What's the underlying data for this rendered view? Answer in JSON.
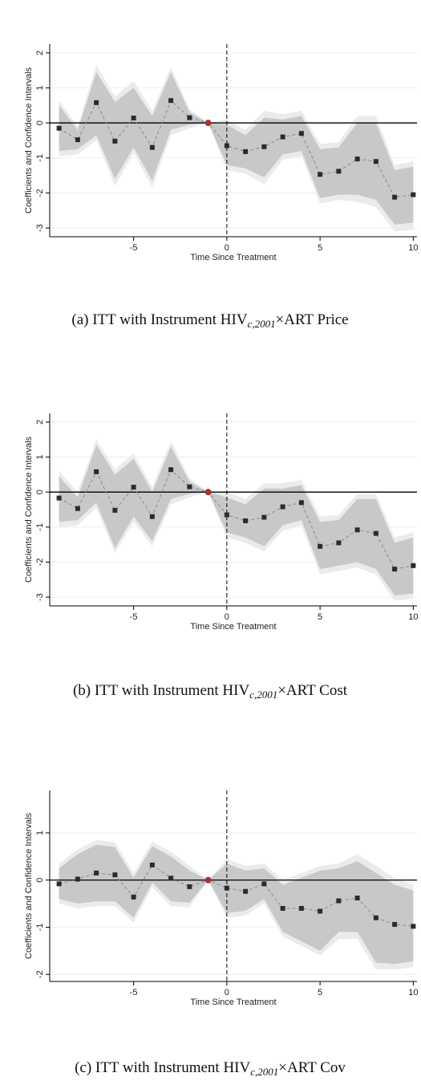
{
  "chart_data": [
    {
      "type": "eventstudy",
      "ylabel": "Coefficients and Confidence Intervals",
      "xlabel": "Time Since Treatment",
      "caption": {
        "prefix": "(a) ITT with Instrument HIV",
        "subscript": "c,2001",
        "suffix": "×ART Price"
      },
      "x": [
        -9,
        -8,
        -7,
        -6,
        -5,
        -4,
        -3,
        -2,
        -1,
        0,
        1,
        2,
        3,
        4,
        5,
        6,
        7,
        8,
        9,
        10
      ],
      "values": [
        -0.15,
        -0.48,
        0.58,
        -0.52,
        0.14,
        -0.7,
        0.64,
        0.15,
        0,
        -0.65,
        -0.82,
        -0.68,
        -0.4,
        -0.3,
        -1.47,
        -1.38,
        -1.03,
        -1.1,
        -2.12,
        -2.05
      ],
      "ci_lower": [
        -0.8,
        -0.75,
        -0.35,
        -1.6,
        -0.7,
        -1.65,
        -0.2,
        -0.05,
        0,
        -1.2,
        -1.3,
        -1.55,
        -0.9,
        -0.8,
        -2.15,
        -2.05,
        -2.05,
        -2.2,
        -2.9,
        -2.85
      ],
      "ci_upper": [
        0.5,
        -0.2,
        1.45,
        0.6,
        1.0,
        0.2,
        1.45,
        0.3,
        0,
        -0.05,
        -0.35,
        0.15,
        0.1,
        0.2,
        -0.75,
        -0.7,
        0,
        0,
        -1.35,
        -1.25
      ],
      "ci_outer_lower": [
        -0.95,
        -0.9,
        -0.5,
        -1.8,
        -0.85,
        -1.85,
        -0.35,
        -0.15,
        0,
        -1.35,
        -1.45,
        -1.75,
        -1.05,
        -0.95,
        -2.3,
        -2.2,
        -2.25,
        -2.4,
        -3.1,
        -3.05
      ],
      "ci_outer_upper": [
        0.65,
        -0.1,
        1.65,
        0.75,
        1.2,
        0.35,
        1.6,
        0.4,
        0,
        0.1,
        -0.2,
        0.35,
        0.25,
        0.35,
        -0.6,
        -0.55,
        0.2,
        0.2,
        -1.2,
        -1.1
      ],
      "xlim": [
        -9.5,
        10.2
      ],
      "ylim": [
        -3.25,
        2.25
      ],
      "xticks": [
        -5,
        0,
        5,
        10
      ],
      "yticks": [
        -3,
        -2,
        -1,
        0,
        1,
        2
      ],
      "reference_x": -1,
      "vline": 0,
      "hline": 0,
      "marker_color": "#2b2b2b",
      "reference_color": "#a83232",
      "line_color": "#8a8a8a",
      "ci_color": "#c8c8c8",
      "ci_outer_color": "#ebebeb"
    },
    {
      "type": "eventstudy",
      "ylabel": "Coefficients and Confidence Intervals",
      "xlabel": "Time Since Treatment",
      "caption": {
        "prefix": "(b) ITT with Instrument HIV",
        "subscript": "c,2001",
        "suffix": "×ART Cost"
      },
      "x": [
        -9,
        -8,
        -7,
        -6,
        -5,
        -4,
        -3,
        -2,
        -1,
        0,
        1,
        2,
        3,
        4,
        5,
        6,
        7,
        8,
        9,
        10
      ],
      "values": [
        -0.17,
        -0.47,
        0.58,
        -0.52,
        0.14,
        -0.7,
        0.64,
        0.15,
        0,
        -0.65,
        -0.82,
        -0.72,
        -0.42,
        -0.3,
        -1.55,
        -1.45,
        -1.08,
        -1.18,
        -2.2,
        -2.1
      ],
      "ci_lower": [
        -0.85,
        -0.8,
        -0.3,
        -1.6,
        -0.7,
        -1.4,
        -0.2,
        -0.05,
        0,
        -1.15,
        -1.3,
        -1.55,
        -0.95,
        -0.8,
        -2.2,
        -2.1,
        -2.0,
        -2.2,
        -2.95,
        -2.9
      ],
      "ci_upper": [
        0.45,
        -0.15,
        1.35,
        0.5,
        0.95,
        0.0,
        1.3,
        0.3,
        0,
        -0.15,
        -0.35,
        0.1,
        0.1,
        0.2,
        -0.85,
        -0.8,
        -0.2,
        -0.2,
        -1.45,
        -1.3
      ],
      "ci_outer_lower": [
        -1.0,
        -0.95,
        -0.45,
        -1.75,
        -0.85,
        -1.55,
        -0.35,
        -0.15,
        0,
        -1.3,
        -1.45,
        -1.7,
        -1.1,
        -0.95,
        -2.35,
        -2.25,
        -2.15,
        -2.35,
        -3.1,
        -3.05
      ],
      "ci_outer_upper": [
        0.6,
        0,
        1.5,
        0.65,
        1.1,
        0.15,
        1.45,
        0.4,
        0,
        0,
        -0.2,
        0.25,
        0.25,
        0.35,
        -0.7,
        -0.65,
        -0.05,
        -0.05,
        -1.3,
        -1.15
      ],
      "xlim": [
        -9.5,
        10.2
      ],
      "ylim": [
        -3.25,
        2.25
      ],
      "xticks": [
        -5,
        0,
        5,
        10
      ],
      "yticks": [
        -3,
        -2,
        -1,
        0,
        1,
        2
      ],
      "reference_x": -1,
      "vline": 0,
      "hline": 0,
      "marker_color": "#2b2b2b",
      "reference_color": "#a83232",
      "line_color": "#8a8a8a",
      "ci_color": "#c8c8c8",
      "ci_outer_color": "#ebebeb"
    },
    {
      "type": "eventstudy",
      "ylabel": "Coefficients and Confidence Intervals",
      "xlabel": "Time Since Treatment",
      "caption": {
        "prefix": "(c) ITT with Instrument HIV",
        "subscript": "c,2001",
        "suffix": "×ART Cov"
      },
      "x": [
        -9,
        -8,
        -7,
        -6,
        -5,
        -4,
        -3,
        -2,
        -1,
        0,
        1,
        2,
        3,
        4,
        5,
        6,
        7,
        8,
        9,
        10
      ],
      "values": [
        -0.08,
        0.02,
        0.15,
        0.11,
        -0.36,
        0.32,
        0.04,
        -0.14,
        0,
        -0.17,
        -0.24,
        -0.08,
        -0.6,
        -0.6,
        -0.66,
        -0.44,
        -0.38,
        -0.8,
        -0.94,
        -0.98
      ],
      "ci_lower": [
        -0.4,
        -0.5,
        -0.45,
        -0.45,
        -0.8,
        -0.05,
        -0.45,
        -0.48,
        0,
        -0.7,
        -0.65,
        -0.4,
        -1.1,
        -1.3,
        -1.5,
        -1.1,
        -1.1,
        -1.75,
        -1.78,
        -1.72
      ],
      "ci_upper": [
        0.25,
        0.55,
        0.75,
        0.7,
        0.05,
        0.72,
        0.5,
        0.2,
        0,
        0.35,
        0.2,
        0.25,
        -0.1,
        0.05,
        0.2,
        0.25,
        0.4,
        0.15,
        -0.1,
        -0.22
      ],
      "ci_outer_lower": [
        -0.5,
        -0.6,
        -0.55,
        -0.55,
        -0.9,
        -0.15,
        -0.55,
        -0.58,
        0,
        -0.8,
        -0.75,
        -0.5,
        -1.2,
        -1.4,
        -1.6,
        -1.25,
        -1.25,
        -1.9,
        -1.9,
        -1.85
      ],
      "ci_outer_upper": [
        0.35,
        0.65,
        0.85,
        0.8,
        0.15,
        0.82,
        0.6,
        0.3,
        0,
        0.45,
        0.3,
        0.35,
        0,
        0.15,
        0.3,
        0.35,
        0.55,
        0.3,
        0.05,
        -0.1
      ],
      "xlim": [
        -9.5,
        10.2
      ],
      "ylim": [
        -2.15,
        1.9
      ],
      "xticks": [
        -5,
        0,
        5,
        10
      ],
      "yticks": [
        -2,
        -1,
        0,
        1
      ],
      "reference_x": -1,
      "vline": 0,
      "hline": 0,
      "marker_color": "#2b2b2b",
      "reference_color": "#a83232",
      "line_color": "#8a8a8a",
      "ci_color": "#c8c8c8",
      "ci_outer_color": "#ebebeb"
    }
  ]
}
